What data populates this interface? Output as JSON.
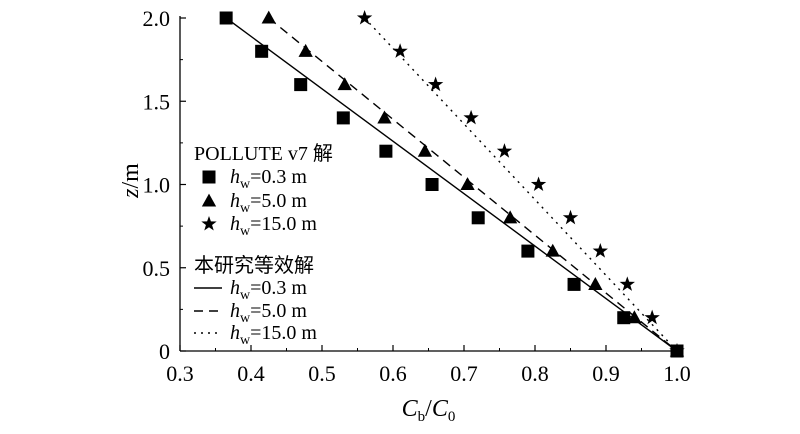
{
  "chart_data": {
    "type": "line",
    "xlabel": {
      "main": "C",
      "sub": "b",
      "sep": "/",
      "main2": "C",
      "sub2": "0"
    },
    "ylabel": {
      "main": "z",
      "unit": "/m"
    },
    "xlim": [
      0.3,
      1.0
    ],
    "ylim": [
      0,
      2.0
    ],
    "xticks": [
      "0.3",
      "0.4",
      "0.5",
      "0.6",
      "0.7",
      "0.8",
      "0.9",
      "1.0"
    ],
    "yticks": [
      "0",
      "0.5",
      "1.0",
      "1.5",
      "2.0"
    ],
    "xtick_values": [
      0.3,
      0.4,
      0.5,
      0.6,
      0.7,
      0.8,
      0.9,
      1.0
    ],
    "ytick_values": [
      0,
      0.5,
      1.0,
      1.5,
      2.0
    ],
    "grid": false,
    "legend_position": "left",
    "legend": {
      "group1_title": "POLLUTE v7 解",
      "group2_title": "本研究等效解",
      "hw_symbol": "h",
      "hw_sub": "w"
    },
    "series": [
      {
        "name": "=0.3 m",
        "kind": "points",
        "marker": "square",
        "x": [
          0.365,
          0.415,
          0.47,
          0.53,
          0.59,
          0.655,
          0.72,
          0.79,
          0.855,
          0.925,
          1.0
        ],
        "y": [
          2.0,
          1.8,
          1.6,
          1.4,
          1.2,
          1.0,
          0.8,
          0.6,
          0.4,
          0.2,
          0
        ]
      },
      {
        "name": "=5.0 m",
        "kind": "points",
        "marker": "triangle",
        "x": [
          0.425,
          0.477,
          0.532,
          0.588,
          0.645,
          0.705,
          0.765,
          0.825,
          0.885,
          0.94,
          1.0
        ],
        "y": [
          2.0,
          1.8,
          1.6,
          1.4,
          1.2,
          1.0,
          0.8,
          0.6,
          0.4,
          0.2,
          0
        ]
      },
      {
        "name": "=15.0 m",
        "kind": "points",
        "marker": "star",
        "x": [
          0.56,
          0.61,
          0.66,
          0.71,
          0.757,
          0.805,
          0.85,
          0.892,
          0.93,
          0.965,
          1.0
        ],
        "y": [
          2.0,
          1.8,
          1.6,
          1.4,
          1.2,
          1.0,
          0.8,
          0.6,
          0.4,
          0.2,
          0
        ]
      },
      {
        "name": "=0.3 m",
        "kind": "line",
        "dash": "solid",
        "x": [
          0.365,
          1.0
        ],
        "y": [
          2.0,
          0
        ]
      },
      {
        "name": "=5.0 m",
        "kind": "line",
        "dash": "dashed",
        "x": [
          0.425,
          1.0
        ],
        "y": [
          2.0,
          0
        ]
      },
      {
        "name": "=15.0 m",
        "kind": "line",
        "dash": "dotted",
        "x": [
          0.56,
          1.0
        ],
        "y": [
          2.0,
          0
        ]
      }
    ]
  }
}
